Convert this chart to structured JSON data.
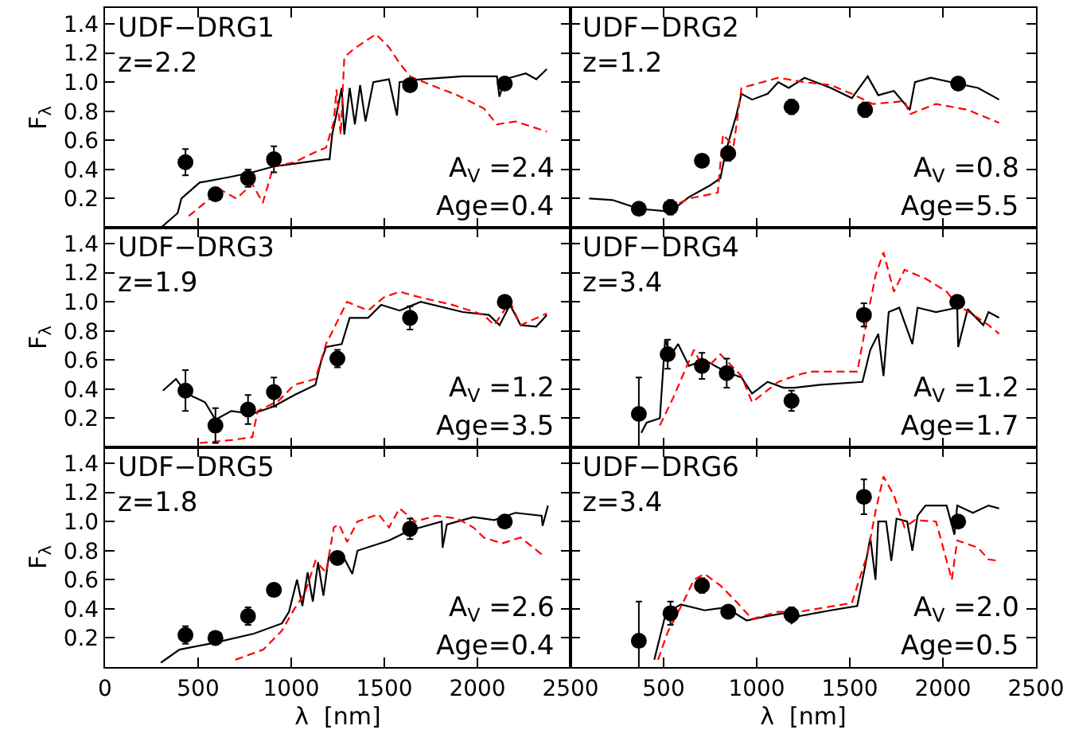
{
  "chart_data": [
    {
      "type": "line",
      "title": "UDF−DRG1",
      "subtitle": "z=2.2",
      "annotations": [
        "A$_{V}$ =2.4",
        "Age=0.4"
      ],
      "ylabel": "F$_{λ}$",
      "xlim": [
        0,
        2500
      ],
      "xticks": [
        0,
        500,
        1000,
        1500,
        2000,
        2500
      ],
      "ylim": [
        0,
        1.51
      ],
      "yticks": [
        0.2,
        0.4,
        0.6,
        0.8,
        {
          "value": 1.0,
          "label": "1.0"
        },
        1.2,
        1.4
      ],
      "tick_labels": "y",
      "series": [
        {
          "color": "#000000",
          "line_style": "solid",
          "marker": "none",
          "x": [
            300,
            390,
            410,
            508,
            678,
            791,
            904,
            1017,
            1187,
            1206,
            1220,
            1243,
            1271,
            1285,
            1314,
            1342,
            1370,
            1399,
            1441,
            1525,
            1568,
            1582,
            1695,
            1921,
            2105,
            2118,
            2147,
            2260,
            2316,
            2373
          ],
          "values": [
            0.0,
            0.1,
            0.2,
            0.31,
            0.35,
            0.38,
            0.42,
            0.44,
            0.47,
            0.47,
            0.64,
            0.78,
            0.96,
            0.64,
            0.96,
            0.71,
            0.98,
            0.73,
            1.0,
            1.02,
            0.77,
            1.0,
            1.02,
            1.04,
            1.04,
            0.9,
            1.02,
            1.06,
            1.02,
            1.09
          ]
        },
        {
          "color": "#ff0000",
          "line_style": "dashed",
          "marker": "none",
          "x": [
            450,
            621,
            706,
            791,
            847,
            904,
            1017,
            1130,
            1187,
            1229,
            1243,
            1266,
            1285,
            1328,
            1384,
            1455,
            1525,
            1582,
            1638,
            1751,
            1893,
            2034,
            2105,
            2204,
            2373
          ],
          "values": [
            0.08,
            0.26,
            0.2,
            0.3,
            0.17,
            0.42,
            0.45,
            0.52,
            0.55,
            0.73,
            0.95,
            0.64,
            1.17,
            1.22,
            1.27,
            1.33,
            1.24,
            1.13,
            1.04,
            0.98,
            0.91,
            0.82,
            0.71,
            0.73,
            0.66
          ]
        },
        {
          "type": "scatter",
          "color": "#000000",
          "marker": "circle",
          "x": [
            432,
            593,
            768,
            907,
            1638,
            2147
          ],
          "values": [
            0.45,
            0.23,
            0.34,
            0.47,
            0.98,
            0.99
          ],
          "errors": [
            0.09,
            null,
            0.06,
            0.09,
            null,
            null
          ]
        }
      ]
    },
    {
      "type": "line",
      "title": "UDF−DRG2",
      "subtitle": "z=1.2",
      "annotations": [
        "A$_{V}$ =0.8",
        "Age=5.5"
      ],
      "xlim": [
        0,
        2500
      ],
      "xticks": [
        500,
        1000,
        1500,
        2000,
        2500
      ],
      "ylim": [
        0,
        1.51
      ],
      "yticks": [
        {
          "value": 0.2,
          "label": null
        },
        {
          "value": 0.4,
          "label": null
        },
        {
          "value": 0.6,
          "label": null
        },
        {
          "value": 0.8,
          "label": null
        },
        {
          "value": 1.0,
          "label": null
        },
        {
          "value": 1.2,
          "label": null
        },
        {
          "value": 1.4,
          "label": null
        }
      ],
      "tick_labels": false,
      "series": [
        {
          "color": "#000000",
          "line_style": "solid",
          "marker": "none",
          "x": [
            100,
            226,
            367,
            537,
            636,
            749,
            805,
            833,
            890,
            918,
            975,
            1059,
            1116,
            1172,
            1257,
            1398,
            1511,
            1596,
            1653,
            1737,
            1822,
            1850,
            1935,
            2077,
            2189,
            2302
          ],
          "values": [
            0.2,
            0.19,
            0.13,
            0.11,
            0.21,
            0.29,
            0.34,
            0.52,
            0.77,
            0.92,
            0.88,
            0.92,
            1.0,
            0.96,
            1.03,
            0.96,
            0.89,
            1.04,
            0.91,
            0.94,
            0.81,
            1.0,
            1.03,
            0.99,
            0.96,
            0.88
          ]
        },
        {
          "color": "#ff0000",
          "line_style": "dashed",
          "marker": "none",
          "x": [
            522,
            636,
            791,
            819,
            876,
            918,
            1116,
            1257,
            1398,
            1511,
            1624,
            1794,
            1822,
            1963,
            2133,
            2302
          ],
          "values": [
            0.13,
            0.2,
            0.24,
            0.64,
            0.56,
            0.96,
            1.03,
            1.0,
            0.98,
            0.92,
            0.85,
            0.87,
            0.78,
            0.85,
            0.81,
            0.72
          ]
        },
        {
          "type": "scatter",
          "color": "#000000",
          "marker": "circle",
          "x": [
            367,
            537,
            706,
            847,
            1187,
            1582,
            2082
          ],
          "values": [
            0.13,
            0.14,
            0.46,
            0.51,
            0.83,
            0.81,
            0.99
          ],
          "errors": [
            null,
            0.05,
            0.04,
            0.05,
            0.05,
            0.05,
            null
          ]
        }
      ]
    },
    {
      "type": "line",
      "title": "UDF−DRG3",
      "subtitle": "z=1.9",
      "annotations": [
        "A$_{V}$ =1.2",
        "Age=3.5"
      ],
      "ylabel": "F$_{λ}$",
      "xlim": [
        0,
        2500
      ],
      "xticks": [
        0,
        500,
        1000,
        1500,
        2000,
        2500
      ],
      "ylim": [
        0,
        1.51
      ],
      "yticks": [
        0.2,
        0.4,
        0.6,
        0.8,
        {
          "value": 1.0,
          "label": "1.0"
        },
        1.2,
        1.4
      ],
      "tick_labels": "y",
      "series": [
        {
          "color": "#000000",
          "line_style": "solid",
          "marker": "none",
          "x": [
            311,
            381,
            438,
            537,
            593,
            678,
            791,
            904,
            1017,
            1130,
            1158,
            1187,
            1271,
            1314,
            1413,
            1483,
            1582,
            1695,
            1921,
            2062,
            2119,
            2175,
            2232,
            2316,
            2373
          ],
          "values": [
            0.39,
            0.47,
            0.37,
            0.31,
            0.19,
            0.25,
            0.23,
            0.28,
            0.36,
            0.43,
            0.58,
            0.69,
            0.71,
            0.89,
            0.89,
            0.98,
            0.94,
            1.0,
            0.93,
            0.91,
            0.84,
            0.98,
            0.84,
            0.83,
            0.91
          ]
        },
        {
          "color": "#ff0000",
          "line_style": "dashed",
          "marker": "none",
          "x": [
            508,
            678,
            791,
            820,
            932,
            1017,
            1130,
            1187,
            1300,
            1413,
            1497,
            1582,
            1695,
            1864,
            2034,
            2090,
            2175,
            2232,
            2373
          ],
          "values": [
            0.03,
            0.05,
            0.07,
            0.25,
            0.32,
            0.43,
            0.47,
            0.71,
            1.0,
            0.94,
            1.03,
            1.07,
            1.03,
            0.98,
            0.91,
            0.84,
            1.0,
            0.84,
            0.92
          ]
        },
        {
          "type": "scatter",
          "color": "#000000",
          "marker": "circle",
          "x": [
            432,
            593,
            768,
            907,
            1248,
            1638,
            2147
          ],
          "values": [
            0.39,
            0.15,
            0.26,
            0.38,
            0.61,
            0.89,
            1.0
          ],
          "errors": [
            0.14,
            0.12,
            0.1,
            0.1,
            0.06,
            0.08,
            null
          ]
        }
      ]
    },
    {
      "type": "line",
      "title": "UDF−DRG4",
      "subtitle": "z=3.4",
      "annotations": [
        "A$_{V}$ =1.2",
        "Age=1.7"
      ],
      "xlim": [
        0,
        2500
      ],
      "xticks": [
        500,
        1000,
        1500,
        2000,
        2500
      ],
      "ylim": [
        0,
        1.51
      ],
      "yticks": [
        {
          "value": 0.2,
          "label": null
        },
        {
          "value": 0.4,
          "label": null
        },
        {
          "value": 0.6,
          "label": null
        },
        {
          "value": 0.8,
          "label": null
        },
        {
          "value": 1.0,
          "label": null
        },
        {
          "value": 1.2,
          "label": null
        },
        {
          "value": 1.4,
          "label": null
        }
      ],
      "tick_labels": false,
      "series": [
        {
          "color": "#000000",
          "line_style": "solid",
          "marker": "none",
          "x": [
            380,
            409,
            480,
            508,
            537,
            578,
            636,
            720,
            833,
            918,
            975,
            1059,
            1144,
            1201,
            1342,
            1568,
            1610,
            1653,
            1681,
            1709,
            1766,
            1836,
            1864,
            1963,
            2077,
            2082,
            2133,
            2217,
            2245,
            2302
          ],
          "values": [
            0.1,
            0.17,
            0.2,
            0.74,
            0.63,
            0.71,
            0.56,
            0.6,
            0.52,
            0.48,
            0.37,
            0.45,
            0.41,
            0.41,
            0.43,
            0.45,
            0.67,
            0.78,
            0.49,
            0.93,
            0.96,
            0.71,
            0.96,
            0.93,
            0.96,
            0.69,
            0.95,
            0.84,
            0.93,
            0.89
          ]
        },
        {
          "color": "#ff0000",
          "line_style": "dashed",
          "marker": "none",
          "x": [
            480,
            551,
            663,
            720,
            805,
            918,
            975,
            1116,
            1201,
            1285,
            1540,
            1610,
            1638,
            1681,
            1737,
            1794,
            1907,
            2020,
            2077,
            2189,
            2245,
            2302
          ],
          "values": [
            0.15,
            0.34,
            0.67,
            0.53,
            0.64,
            0.49,
            0.31,
            0.45,
            0.49,
            0.52,
            0.52,
            1.0,
            1.18,
            1.34,
            1.07,
            1.22,
            1.16,
            1.07,
            0.98,
            0.89,
            0.84,
            0.78
          ]
        },
        {
          "type": "scatter",
          "color": "#000000",
          "marker": "circle",
          "x": [
            367,
            522,
            706,
            839,
            1187,
            1576,
            2077
          ],
          "values": [
            0.23,
            0.64,
            0.56,
            0.51,
            0.32,
            0.91,
            1.0
          ],
          "errors": [
            0.25,
            0.1,
            0.09,
            0.1,
            0.07,
            0.08,
            null
          ]
        }
      ]
    },
    {
      "type": "line",
      "title": "UDF−DRG5",
      "subtitle": "z=1.8",
      "annotations": [
        "A$_{V}$ =2.6",
        "Age=0.4"
      ],
      "ylabel": "F$_{λ}$",
      "xlabel": "λ  [nm]",
      "xlim": [
        0,
        2500
      ],
      "xticks": [
        0,
        500,
        1000,
        1500,
        2000,
        2500
      ],
      "ylim": [
        0,
        1.51
      ],
      "yticks": [
        0.2,
        0.4,
        0.6,
        0.8,
        {
          "value": 1.0,
          "label": "1.0"
        },
        1.2,
        1.4
      ],
      "series": [
        {
          "color": "#000000",
          "line_style": "solid",
          "marker": "none",
          "x": [
            300,
            400,
            600,
            800,
            950,
            988,
            1031,
            1060,
            1088,
            1116,
            1144,
            1173,
            1201,
            1271,
            1328,
            1356,
            1525,
            1638,
            1808,
            1813,
            1836,
            1978,
            2091,
            2204,
            2345,
            2350,
            2379
          ],
          "values": [
            0.03,
            0.12,
            0.17,
            0.23,
            0.3,
            0.38,
            0.6,
            0.42,
            0.65,
            0.45,
            0.72,
            0.49,
            0.75,
            0.78,
            0.64,
            0.8,
            0.87,
            0.94,
            1.0,
            0.82,
            0.98,
            1.03,
            1.01,
            1.06,
            1.04,
            0.97,
            1.11
          ]
        },
        {
          "color": "#ff0000",
          "line_style": "dashed",
          "marker": "none",
          "x": [
            700,
            850,
            950,
            1017,
            1074,
            1130,
            1187,
            1229,
            1257,
            1300,
            1356,
            1469,
            1525,
            1582,
            1666,
            1780,
            1893,
            1978,
            2034,
            2133,
            2232,
            2359
          ],
          "values": [
            0.05,
            0.12,
            0.25,
            0.4,
            0.51,
            0.73,
            0.65,
            0.96,
            0.98,
            0.86,
            1.0,
            1.05,
            0.96,
            1.09,
            1.0,
            1.04,
            1.02,
            0.96,
            0.89,
            0.85,
            0.89,
            0.76
          ]
        },
        {
          "type": "scatter",
          "color": "#000000",
          "marker": "circle",
          "x": [
            432,
            593,
            768,
            907,
            1248,
            1638,
            2147
          ],
          "values": [
            0.22,
            0.2,
            0.35,
            0.53,
            0.75,
            0.95,
            1.0
          ],
          "errors": [
            0.06,
            null,
            0.06,
            null,
            null,
            0.07,
            null
          ]
        }
      ]
    },
    {
      "type": "line",
      "title": "UDF−DRG6",
      "subtitle": "z=3.4",
      "annotations": [
        "A$_{V}$ =2.0",
        "Age=0.5"
      ],
      "xlabel": "λ  [nm]",
      "xlim": [
        0,
        2500
      ],
      "xticks": [
        500,
        1000,
        1500,
        2000,
        2500
      ],
      "ylim": [
        0,
        1.51
      ],
      "yticks": [
        {
          "value": 0.2,
          "label": null
        },
        {
          "value": 0.4,
          "label": null
        },
        {
          "value": 0.6,
          "label": null
        },
        {
          "value": 0.8,
          "label": null
        },
        {
          "value": 1.0,
          "label": null
        },
        {
          "value": 1.2,
          "label": null
        },
        {
          "value": 1.4,
          "label": null
        }
      ],
      "tick_labels": "x",
      "series": [
        {
          "color": "#000000",
          "line_style": "solid",
          "marker": "none",
          "x": [
            450,
            508,
            537,
            593,
            720,
            833,
            946,
            1059,
            1144,
            1187,
            1229,
            1398,
            1540,
            1582,
            1610,
            1638,
            1653,
            1695,
            1723,
            1751,
            1808,
            1836,
            1864,
            1907,
            2020,
            2062,
            2077,
            2161,
            2245,
            2302
          ],
          "values": [
            0.05,
            0.35,
            0.39,
            0.43,
            0.39,
            0.41,
            0.32,
            0.35,
            0.37,
            0.3,
            0.35,
            0.39,
            0.42,
            0.69,
            0.89,
            0.6,
            1.0,
            1.0,
            0.73,
            1.02,
            1.0,
            0.8,
            1.04,
            1.11,
            1.11,
            0.91,
            1.11,
            1.06,
            1.11,
            1.09
          ]
        },
        {
          "color": "#ff0000",
          "line_style": "dashed",
          "marker": "none",
          "x": [
            470,
            522,
            607,
            663,
            720,
            805,
            890,
            975,
            1116,
            1229,
            1511,
            1596,
            1638,
            1681,
            1737,
            1794,
            1850,
            1963,
            2048,
            2077,
            2189,
            2245,
            2302
          ],
          "values": [
            0.05,
            0.24,
            0.45,
            0.6,
            0.64,
            0.56,
            0.45,
            0.33,
            0.38,
            0.38,
            0.44,
            0.78,
            1.07,
            1.31,
            1.18,
            0.96,
            1.01,
            1.0,
            0.6,
            0.87,
            0.82,
            0.74,
            0.73
          ]
        },
        {
          "type": "scatter",
          "color": "#000000",
          "marker": "circle",
          "x": [
            367,
            537,
            706,
            847,
            1187,
            1576,
            2082
          ],
          "values": [
            0.18,
            0.37,
            0.56,
            0.38,
            0.36,
            1.17,
            1.0
          ],
          "errors": [
            0.27,
            0.08,
            0.05,
            null,
            0.05,
            0.12,
            null
          ]
        }
      ]
    }
  ]
}
